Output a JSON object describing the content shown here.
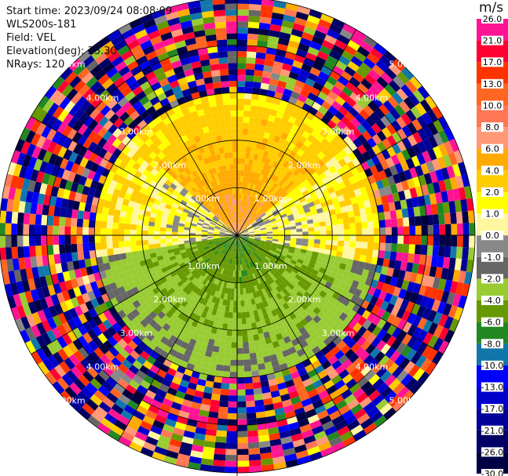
{
  "info": {
    "start_time": "Start time: 2023/09/24 08:08:09",
    "radar": "WLS200s-181",
    "field": "Field: VEL",
    "elevation": "Elevation(deg): 35.30",
    "nrays": "NRays: 120"
  },
  "colorbar": {
    "title": "m/s",
    "ticks": [
      "26.0",
      "21.0",
      "17.0",
      "13.0",
      "10.0",
      "8.0",
      "6.0",
      "4.0",
      "2.0",
      "1.0",
      "0.0",
      "-1.0",
      "-2.0",
      "-4.0",
      "-6.0",
      "-8.0",
      "-10.0",
      "-13.0",
      "-17.0",
      "-21.0",
      "-26.0",
      "-30.0"
    ],
    "colors": [
      "#ff1493",
      "#ff0033",
      "#ff3300",
      "#ff6622",
      "#ff7755",
      "#ff9977",
      "#ffaa00",
      "#ffcc00",
      "#ffff00",
      "#fff7a0",
      "#888888",
      "#666666",
      "#99cc33",
      "#669900",
      "#228822",
      "#1177aa",
      "#0000ff",
      "#0000cc",
      "#000099",
      "#000066",
      "#000044"
    ]
  },
  "chart_data": {
    "type": "heatmap",
    "projection": "polar-ppi",
    "field": "VEL",
    "units": "m/s",
    "nrays": 120,
    "vmin": -30.0,
    "vmax": 26.0,
    "max_range_km": 5.0,
    "range_ring_labels": [
      "1.00km",
      "2.00km",
      "3.00km",
      "4.00km",
      "5.00km"
    ],
    "center_value": 0.0,
    "valid_data_range_km": [
      0,
      3.0
    ],
    "noise_beyond_km": 3.0,
    "sector_pattern": [
      {
        "az_from": 310,
        "az_to": 50,
        "near_value": 6.0,
        "far_value": 2.0
      },
      {
        "az_from": 50,
        "az_to": 100,
        "near_value": 0.0,
        "far_value": 2.0
      },
      {
        "az_from": 100,
        "az_to": 260,
        "near_value": -6.0,
        "far_value": -2.0
      },
      {
        "az_from": 260,
        "az_to": 310,
        "near_value": 0.0,
        "far_value": 2.0
      }
    ]
  }
}
